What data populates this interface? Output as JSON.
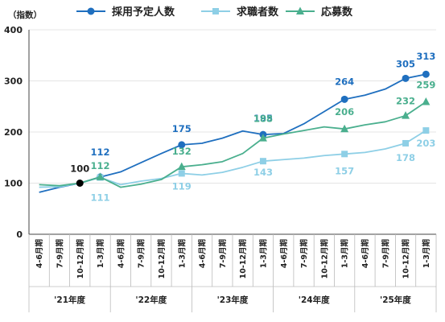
{
  "chart_data": {
    "type": "line",
    "unit_label": "（指数）",
    "categories": [
      "4-6月期",
      "7-9月期",
      "10-12月期",
      "1-3月期",
      "4-6月期",
      "7-9月期",
      "10-12月期",
      "1-3月期",
      "4-6月期",
      "7-9月期",
      "10-12月期",
      "1-3月期",
      "4-6月期",
      "7-9月期",
      "10-12月期",
      "1-3月期",
      "4-6月期",
      "7-9月期",
      "10-12月期",
      "1-3月期"
    ],
    "fiscal_years": [
      "'21年度",
      "'22年度",
      "'23年度",
      "'24年度",
      "'25年度"
    ],
    "ylim": [
      0,
      400
    ],
    "yticks": [
      0,
      100,
      200,
      300,
      400
    ],
    "baseline": {
      "index": 2,
      "value": 100,
      "label": "100",
      "color": "#000000"
    },
    "series": [
      {
        "name": "採用予定人数",
        "color": "#1f6fbf",
        "marker": "circle",
        "values": [
          82,
          92,
          100,
          112,
          122,
          140,
          158,
          175,
          178,
          188,
          202,
          195,
          197,
          216,
          240,
          264,
          272,
          284,
          305,
          313
        ],
        "labels": [
          {
            "i": 3,
            "text": "112"
          },
          {
            "i": 7,
            "text": "175"
          },
          {
            "i": 11,
            "text": "195"
          },
          {
            "i": 15,
            "text": "264"
          },
          {
            "i": 18,
            "text": "305"
          },
          {
            "i": 19,
            "text": "313"
          }
        ]
      },
      {
        "name": "求職者数",
        "color": "#8ecfe6",
        "marker": "square",
        "values": [
          92,
          93,
          100,
          111,
          97,
          104,
          109,
          119,
          116,
          121,
          131,
          143,
          146,
          149,
          154,
          157,
          160,
          167,
          178,
          203
        ],
        "labels": [
          {
            "i": 3,
            "text": "111"
          },
          {
            "i": 7,
            "text": "119"
          },
          {
            "i": 11,
            "text": "143"
          },
          {
            "i": 15,
            "text": "157"
          },
          {
            "i": 18,
            "text": "178"
          },
          {
            "i": 19,
            "text": "203"
          }
        ]
      },
      {
        "name": "応募数",
        "color": "#4aaf8e",
        "marker": "triangle",
        "values": [
          97,
          95,
          100,
          112,
          92,
          98,
          107,
          132,
          136,
          142,
          158,
          188,
          196,
          203,
          210,
          206,
          214,
          220,
          232,
          259
        ],
        "labels": [
          {
            "i": 3,
            "text": "112"
          },
          {
            "i": 7,
            "text": "132"
          },
          {
            "i": 11,
            "text": "188"
          },
          {
            "i": 15,
            "text": "206"
          },
          {
            "i": 18,
            "text": "232"
          },
          {
            "i": 19,
            "text": "259"
          }
        ]
      }
    ],
    "grid": "horizontal",
    "legend": "top"
  }
}
